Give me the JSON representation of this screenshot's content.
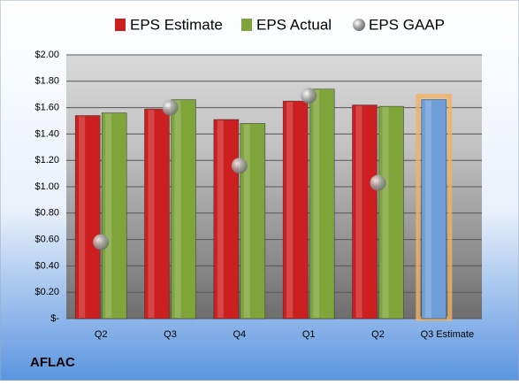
{
  "chart_data": {
    "type": "bar",
    "footer": "AFLAC",
    "categories": [
      "Q2",
      "Q3",
      "Q4",
      "Q1",
      "Q2",
      "Q3 Estimate"
    ],
    "series": [
      {
        "name": "EPS Estimate",
        "color": "#cc1f1f",
        "colors": [
          "#cc1f1f",
          "#cc1f1f",
          "#cc1f1f",
          "#cc1f1f",
          "#cc1f1f",
          "#6f9fd8"
        ],
        "values": [
          1.54,
          1.59,
          1.51,
          1.65,
          1.62,
          1.66
        ]
      },
      {
        "name": "EPS Actual",
        "color": "#7fa43a",
        "values": [
          1.56,
          1.66,
          1.48,
          1.74,
          1.61,
          null
        ]
      },
      {
        "name": "EPS GAAP",
        "type": "scatter",
        "color": "#a8a8a8",
        "values": [
          0.58,
          1.6,
          1.16,
          1.69,
          1.03,
          null
        ]
      }
    ],
    "ylim": [
      0,
      2
    ],
    "yticks": [
      {
        "value": 0,
        "label": "$-"
      },
      {
        "value": 0.2,
        "label": "$0.20"
      },
      {
        "value": 0.4,
        "label": "$0.40"
      },
      {
        "value": 0.6,
        "label": "$0.60"
      },
      {
        "value": 0.8,
        "label": "$0.80"
      },
      {
        "value": 1,
        "label": "$1.00"
      },
      {
        "value": 1.2,
        "label": "$1.20"
      },
      {
        "value": 1.4,
        "label": "$1.40"
      },
      {
        "value": 1.6,
        "label": "$1.60"
      },
      {
        "value": 1.8,
        "label": "$1.80"
      },
      {
        "value": 2,
        "label": "$2.00"
      }
    ],
    "grid": true
  }
}
